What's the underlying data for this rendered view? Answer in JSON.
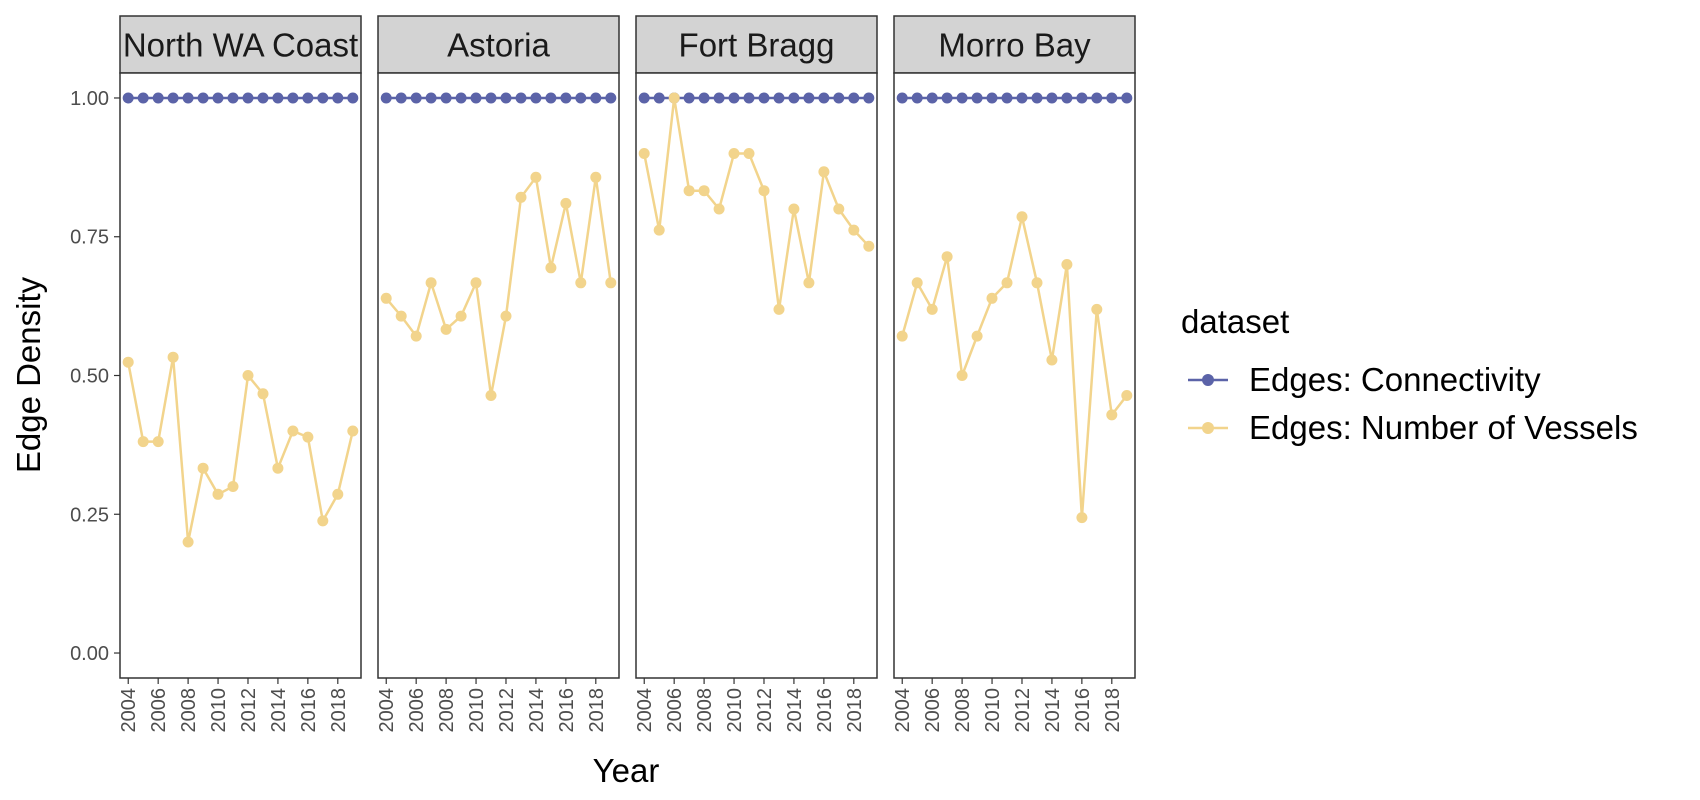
{
  "chart_data": {
    "type": "line",
    "facet_type": "facet_wrap",
    "x": [
      2004,
      2005,
      2006,
      2007,
      2008,
      2009,
      2010,
      2011,
      2012,
      2013,
      2014,
      2015,
      2016,
      2017,
      2018,
      2019
    ],
    "xlabel": "Year",
    "ylabel": "Edge Density",
    "xticks": [
      "2004",
      "2006",
      "2008",
      "2010",
      "2012",
      "2014",
      "2016",
      "2018"
    ],
    "yticks": [
      "0.00",
      "0.25",
      "0.50",
      "0.75",
      "1.00"
    ],
    "ylim": [
      -0.045,
      1.045
    ],
    "xlim": [
      2003.45,
      2019.55
    ],
    "grid": false,
    "legend": {
      "title": "dataset",
      "placement": "right",
      "entries": [
        {
          "name": "Edges: Connectivity",
          "color": "#5b63a8"
        },
        {
          "name": "Edges: Number of Vessels",
          "color": "#f2d48c"
        }
      ]
    },
    "panels": [
      {
        "name": "North WA Coast",
        "series": [
          {
            "name": "Edges: Connectivity",
            "values": [
              1,
              1,
              1,
              1,
              1,
              1,
              1,
              1,
              1,
              1,
              1,
              1,
              1,
              1,
              1,
              1
            ]
          },
          {
            "name": "Edges: Number of Vessels",
            "values": [
              0.524,
              0.381,
              0.381,
              0.533,
              0.2,
              0.333,
              0.286,
              0.3,
              0.5,
              0.467,
              0.333,
              0.4,
              0.389,
              0.238,
              0.286,
              0.4
            ]
          }
        ]
      },
      {
        "name": "Astoria",
        "series": [
          {
            "name": "Edges: Connectivity",
            "values": [
              1,
              1,
              1,
              1,
              1,
              1,
              1,
              1,
              1,
              1,
              1,
              1,
              1,
              1,
              1,
              1
            ]
          },
          {
            "name": "Edges: Number of Vessels",
            "values": [
              0.639,
              0.607,
              0.571,
              0.667,
              0.583,
              0.607,
              0.667,
              0.464,
              0.607,
              0.821,
              0.857,
              0.694,
              0.81,
              0.667,
              0.857,
              0.667
            ]
          }
        ]
      },
      {
        "name": "Fort Bragg",
        "series": [
          {
            "name": "Edges: Connectivity",
            "values": [
              1,
              1,
              1,
              1,
              1,
              1,
              1,
              1,
              1,
              1,
              1,
              1,
              1,
              1,
              1,
              1
            ]
          },
          {
            "name": "Edges: Number of Vessels",
            "values": [
              0.9,
              0.762,
              1.0,
              0.833,
              0.833,
              0.8,
              0.9,
              0.9,
              0.833,
              0.619,
              0.8,
              0.667,
              0.867,
              0.8,
              0.762,
              0.733
            ]
          }
        ]
      },
      {
        "name": "Morro Bay",
        "series": [
          {
            "name": "Edges: Connectivity",
            "values": [
              1,
              1,
              1,
              1,
              1,
              1,
              1,
              1,
              1,
              1,
              1,
              1,
              1,
              1,
              1,
              1
            ]
          },
          {
            "name": "Edges: Number of Vessels",
            "values": [
              0.571,
              0.667,
              0.619,
              0.714,
              0.5,
              0.571,
              0.639,
              0.667,
              0.786,
              0.667,
              0.528,
              0.7,
              0.244,
              0.619,
              0.429,
              0.464
            ]
          }
        ]
      }
    ]
  }
}
